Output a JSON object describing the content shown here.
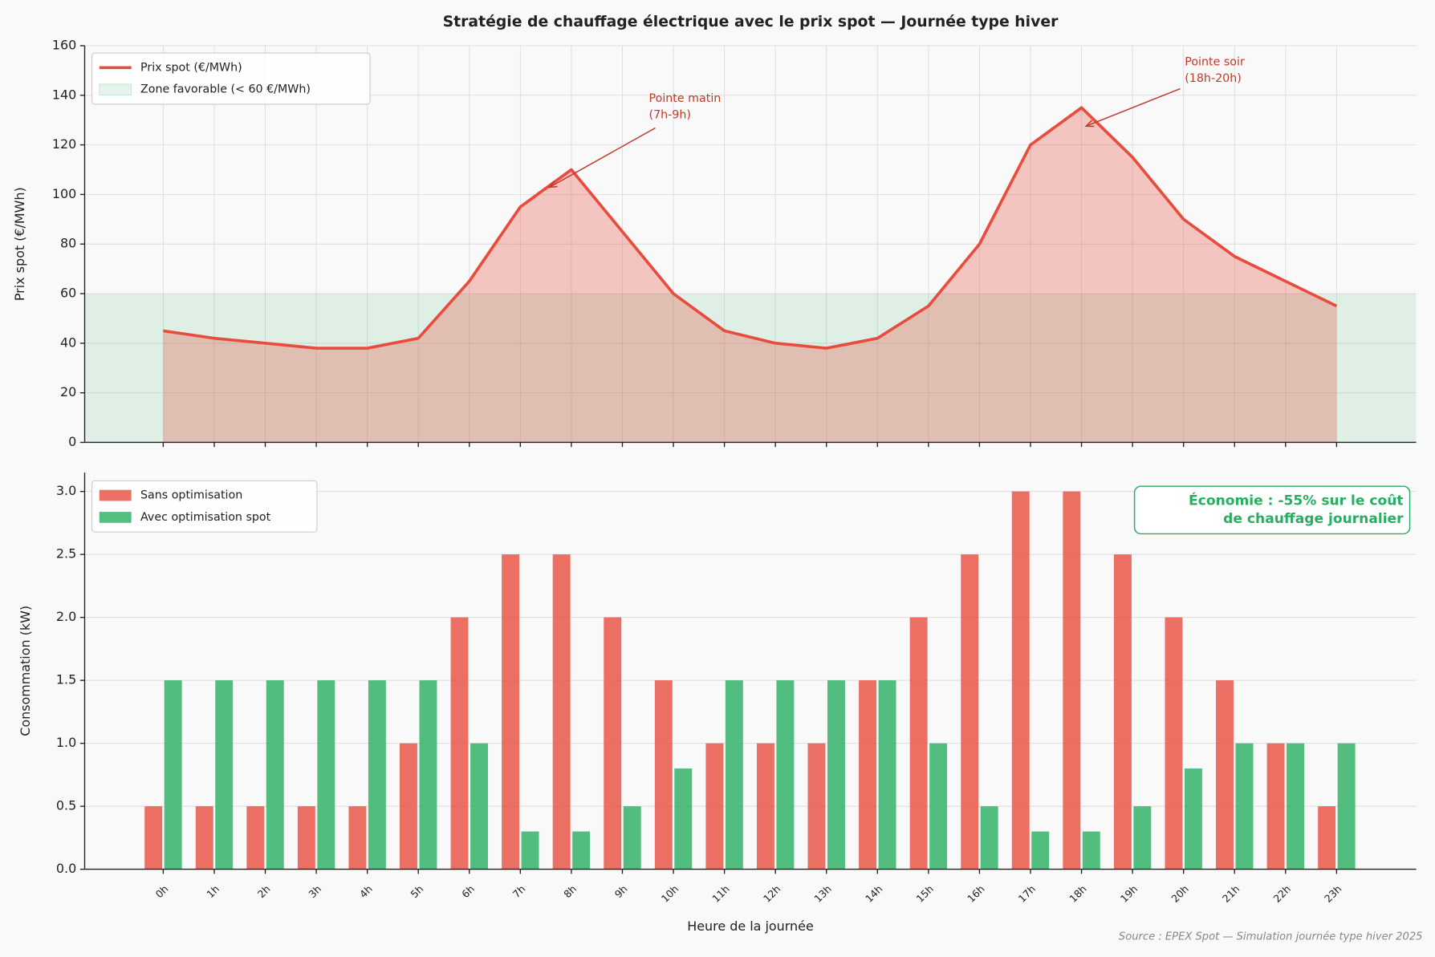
{
  "chart_data": [
    {
      "type": "line",
      "title": "Stratégie de chauffage électrique avec le prix spot — Journée type hiver",
      "ylabel": "Prix spot (€/MWh)",
      "x": [
        0,
        1,
        2,
        3,
        4,
        5,
        6,
        7,
        8,
        9,
        10,
        11,
        12,
        13,
        14,
        15,
        16,
        17,
        18,
        19,
        20,
        21,
        22,
        23
      ],
      "xlim": [
        -1.54,
        24.56
      ],
      "ylim": [
        0,
        160
      ],
      "yticks": [
        0,
        20,
        40,
        60,
        80,
        100,
        120,
        140,
        160
      ],
      "grid": true,
      "legend": "upper left",
      "series": [
        {
          "name": "Prix spot (€/MWh)",
          "color": "#e74c3c",
          "values": [
            45,
            42,
            40,
            38,
            38,
            42,
            65,
            95,
            110,
            85,
            60,
            45,
            40,
            38,
            42,
            55,
            80,
            120,
            135,
            115,
            90,
            75,
            65,
            55
          ]
        }
      ],
      "zone": {
        "name": "Zone favorable (< 60 €/MWh)",
        "color": "#27ae60",
        "ylim": [
          0,
          60
        ]
      },
      "annotations": [
        {
          "lines": [
            "Pointe matin",
            "(7h-9h)"
          ],
          "color": "#c0392b"
        },
        {
          "lines": [
            "Pointe soir",
            "(18h-20h)"
          ],
          "color": "#c0392b"
        }
      ]
    },
    {
      "type": "bar",
      "xlabel": "Heure de la journée",
      "ylabel": "Consommation (kW)",
      "categories": [
        "0h",
        "1h",
        "2h",
        "3h",
        "4h",
        "5h",
        "6h",
        "7h",
        "8h",
        "9h",
        "10h",
        "11h",
        "12h",
        "13h",
        "14h",
        "15h",
        "16h",
        "17h",
        "18h",
        "19h",
        "20h",
        "21h",
        "22h",
        "23h"
      ],
      "xlim": [
        -1.54,
        24.56
      ],
      "ylim": [
        0,
        3.15
      ],
      "yticks": [
        {
          "value": 0,
          "label": "0.0"
        },
        0.5,
        {
          "value": 1,
          "label": "1.0"
        },
        1.5,
        {
          "value": 2,
          "label": "2.0"
        },
        2.5,
        {
          "value": 3,
          "label": "3.0"
        }
      ],
      "grid": true,
      "legend": "upper left",
      "series": [
        {
          "name": "Sans optimisation",
          "color": "#e74c3c",
          "values": [
            0.5,
            0.5,
            0.5,
            0.5,
            0.5,
            1,
            2,
            2.5,
            2.5,
            2,
            1.5,
            1,
            1,
            1,
            1.5,
            2,
            2.5,
            3,
            3,
            2.5,
            2,
            1.5,
            1,
            0.5
          ]
        },
        {
          "name": "Avec optimisation spot",
          "color": "#27ae60",
          "values": [
            1.5,
            1.5,
            1.5,
            1.5,
            1.5,
            1.5,
            1,
            0.3,
            0.3,
            0.5,
            0.8,
            1.5,
            1.5,
            1.5,
            1.5,
            1,
            0.5,
            0.3,
            0.3,
            0.5,
            0.8,
            1,
            1,
            1
          ]
        }
      ],
      "note": {
        "lines": [
          "Économie : -55% sur le coût",
          "de chauffage journalier"
        ],
        "color": "#27ae60"
      },
      "source": "Source : EPEX Spot — Simulation journée type hiver 2025"
    }
  ]
}
